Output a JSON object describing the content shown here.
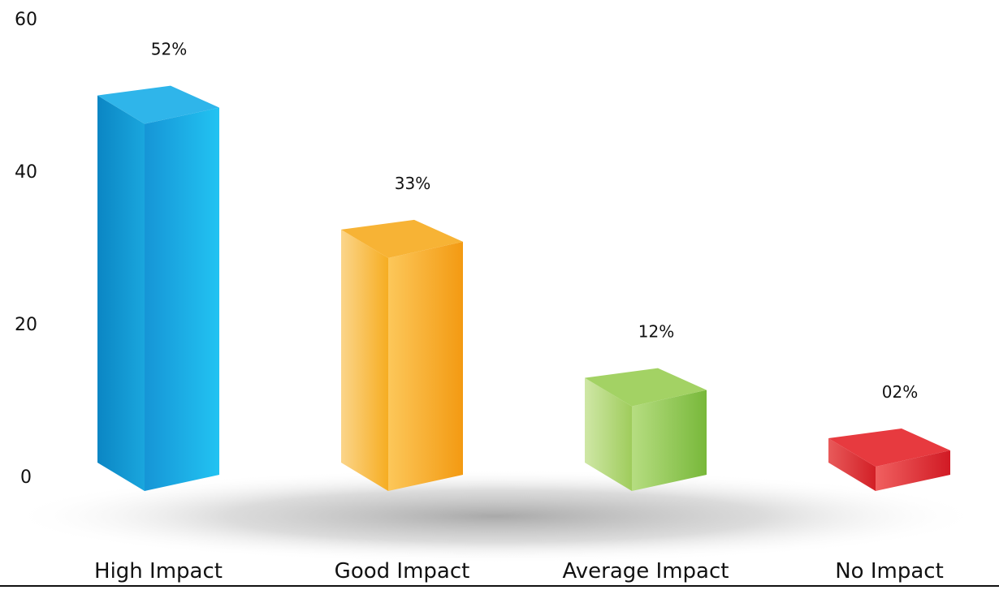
{
  "chart_data": {
    "type": "bar",
    "categories": [
      "High Impact",
      "Good Impact",
      "Average Impact",
      "No Impact"
    ],
    "values": [
      52,
      33,
      12,
      2
    ],
    "data_labels": [
      "52%",
      "33%",
      "12%",
      "02%"
    ],
    "yticks": [
      "0",
      "20",
      "40",
      "60"
    ],
    "ytick_values": [
      0,
      20,
      40,
      60
    ],
    "ylim": [
      0,
      60
    ],
    "title": "",
    "xlabel": "",
    "ylabel": "",
    "grid": false,
    "style": "3d-columns",
    "colors": [
      {
        "left_light": "#0b86c4",
        "left_dark": "#1aa6dd",
        "front_light": "#1695d6",
        "front_dark": "#22c3f2",
        "top": "#2fb5ea"
      },
      {
        "left_light": "#fbd58a",
        "left_dark": "#f6ad22",
        "front_light": "#fcc75a",
        "front_dark": "#f39a12",
        "top": "#f7b335"
      },
      {
        "left_light": "#cfe7a6",
        "left_dark": "#9fcc5c",
        "front_light": "#b6dd81",
        "front_dark": "#78b83a",
        "top": "#a3d264"
      },
      {
        "left_light": "#e85a5a",
        "left_dark": "#d21f26",
        "front_light": "#f06060",
        "front_dark": "#d11a24",
        "top": "#e73a3f"
      }
    ]
  }
}
